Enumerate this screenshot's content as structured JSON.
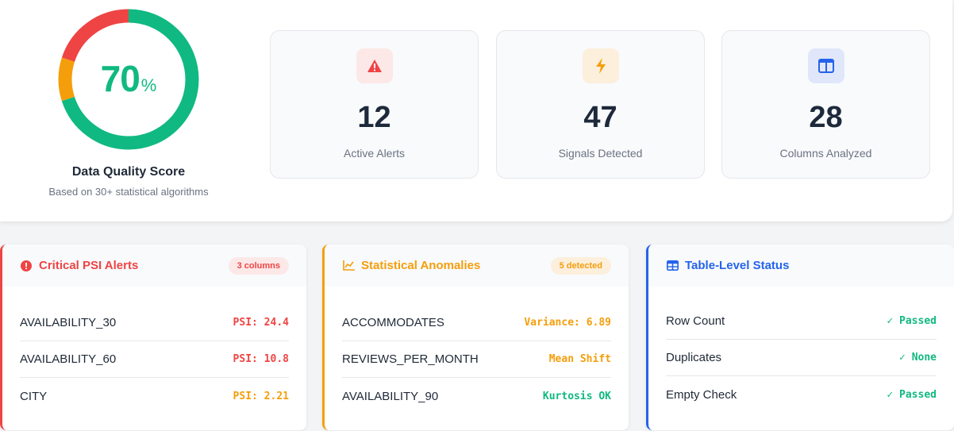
{
  "score": {
    "value": 70,
    "value_text": "70",
    "unit": "%",
    "label": "Data Quality Score",
    "subtitle": "Based on 30+ statistical algorithms",
    "segments": [
      {
        "name": "good",
        "fraction": 0.7,
        "color": "#10b981"
      },
      {
        "name": "warning",
        "fraction": 0.1,
        "color": "#f59e0b"
      },
      {
        "name": "critical",
        "fraction": 0.2,
        "color": "#ef4444"
      }
    ]
  },
  "stats": [
    {
      "value": "12",
      "label": "Active Alerts",
      "icon": "warning-icon",
      "color": "#ef4444"
    },
    {
      "value": "47",
      "label": "Signals Detected",
      "icon": "lightning-icon",
      "color": "#f59e0b"
    },
    {
      "value": "28",
      "label": "Columns Analyzed",
      "icon": "columns-icon",
      "color": "#2563eb"
    }
  ],
  "panels": {
    "psi": {
      "title": "Critical PSI Alerts",
      "badge": "3 columns",
      "icon": "alert-circle-icon",
      "accent": "#ef4444",
      "rows": [
        {
          "name": "AVAILABILITY_30",
          "value": "PSI: 24.4",
          "status": "critical"
        },
        {
          "name": "AVAILABILITY_60",
          "value": "PSI: 10.8",
          "status": "critical"
        },
        {
          "name": "CITY",
          "value": "PSI: 2.21",
          "status": "warning"
        }
      ]
    },
    "anomalies": {
      "title": "Statistical Anomalies",
      "badge": "5 detected",
      "icon": "chart-line-icon",
      "accent": "#f59e0b",
      "rows": [
        {
          "name": "ACCOMMODATES",
          "value": "Variance: 6.89",
          "status": "warning"
        },
        {
          "name": "REVIEWS_PER_MONTH",
          "value": "Mean Shift",
          "status": "warning"
        },
        {
          "name": "AVAILABILITY_90",
          "value": "Kurtosis OK",
          "status": "ok"
        }
      ]
    },
    "table": {
      "title": "Table-Level Status",
      "icon": "table-icon",
      "accent": "#2563eb",
      "rows": [
        {
          "name": "Row Count",
          "value": "Passed",
          "status": "ok"
        },
        {
          "name": "Duplicates",
          "value": "None",
          "status": "ok"
        },
        {
          "name": "Empty Check",
          "value": "Passed",
          "status": "ok"
        }
      ]
    }
  }
}
